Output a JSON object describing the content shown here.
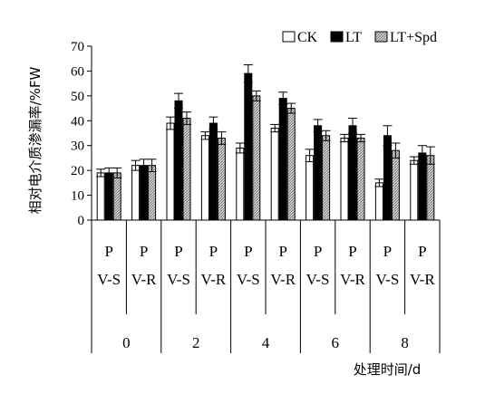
{
  "chart_data": {
    "type": "bar",
    "ylabel": "相对电介质渗漏率/%FW",
    "xlabel": "处理时间/d",
    "ylim": [
      0,
      70
    ],
    "yticks": [
      0,
      10,
      20,
      30,
      40,
      50,
      60,
      70
    ],
    "legend_position": "top-right",
    "groups": [
      "0",
      "2",
      "4",
      "6",
      "8"
    ],
    "subgroups": [
      [
        "P",
        "V-S"
      ],
      [
        "P",
        "V-R"
      ]
    ],
    "series": [
      {
        "name": "CK",
        "fill": "#ffffff",
        "values": [
          19,
          22,
          39,
          34,
          29,
          37,
          26,
          33,
          15,
          24
        ],
        "errors": [
          1.5,
          2,
          2.5,
          1.5,
          2,
          1.5,
          2.5,
          1.5,
          1.5,
          1.5
        ]
      },
      {
        "name": "LT",
        "fill": "#000000",
        "values": [
          19,
          22,
          48,
          39,
          59,
          49,
          38,
          38,
          34,
          27
        ],
        "errors": [
          2,
          2.5,
          3,
          2.5,
          3.5,
          2.5,
          2.5,
          3,
          4,
          3
        ]
      },
      {
        "name": "LT+Spd",
        "fill": "hatched-gray",
        "values": [
          19,
          22,
          41,
          33,
          50,
          45,
          34,
          33,
          28,
          26
        ],
        "errors": [
          2,
          2.5,
          2.5,
          2.5,
          2,
          2,
          2,
          1.5,
          3,
          3.5
        ]
      }
    ]
  }
}
